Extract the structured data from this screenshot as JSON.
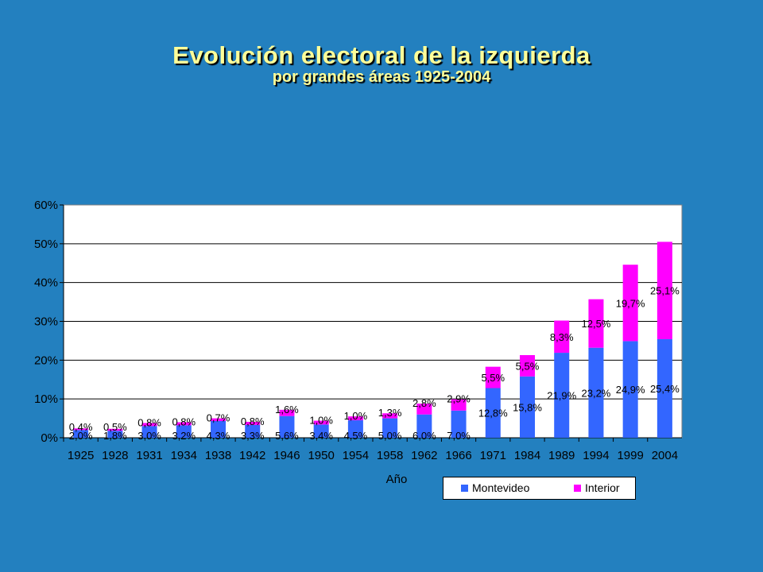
{
  "slide": {
    "title": "Evolución electoral de la izquierda",
    "subtitle": "por grandes áreas 1925-2004"
  },
  "chart_data": {
    "type": "bar",
    "stacked": true,
    "categories": [
      "1925",
      "1928",
      "1931",
      "1934",
      "1938",
      "1942",
      "1946",
      "1950",
      "1954",
      "1958",
      "1962",
      "1966",
      "1971",
      "1984",
      "1989",
      "1994",
      "1999",
      "2004"
    ],
    "series": [
      {
        "name": "Montevideo",
        "color": "#3366ff",
        "values": [
          2.0,
          1.8,
          3.0,
          3.2,
          4.3,
          3.3,
          5.6,
          3.4,
          4.5,
          5.0,
          6.0,
          7.0,
          12.8,
          15.8,
          21.9,
          23.2,
          24.9,
          25.4
        ],
        "labels": [
          "2,0%",
          "1,8%",
          "3,0%",
          "3,2%",
          "4,3%",
          "3,3%",
          "5,6%",
          "3,4%",
          "4,5%",
          "5,0%",
          "6,0%",
          "7,0%",
          "12,8%",
          "15,8%",
          "21,9%",
          "23,2%",
          "24,9%",
          "25,4%"
        ]
      },
      {
        "name": "Interior",
        "color": "#ff00ff",
        "values": [
          0.4,
          0.5,
          0.8,
          0.8,
          0.7,
          0.8,
          1.6,
          1.0,
          1.0,
          1.3,
          2.8,
          2.9,
          5.5,
          5.5,
          8.3,
          12.5,
          19.7,
          25.1
        ],
        "labels": [
          "0,4%",
          "0,5%",
          "0,8%",
          "0,8%",
          "0,7%",
          "0,8%",
          "1,6%",
          "1,0%",
          "1,0%",
          "1,3%",
          "2,8%",
          "2,9%",
          "5,5%",
          "5,5%",
          "8,3%",
          "12,5%",
          "19,7%",
          "25,1%"
        ]
      }
    ],
    "xlabel": "Año",
    "ylabel": "",
    "ylim": [
      0,
      60
    ],
    "yticks": [
      "0%",
      "10%",
      "20%",
      "30%",
      "40%",
      "50%",
      "60%"
    ],
    "grid": true,
    "legend_position": "bottom-right"
  },
  "colors": {
    "background": "#2380bf",
    "plot_area": "#ffffff",
    "title": "#ffff99"
  }
}
